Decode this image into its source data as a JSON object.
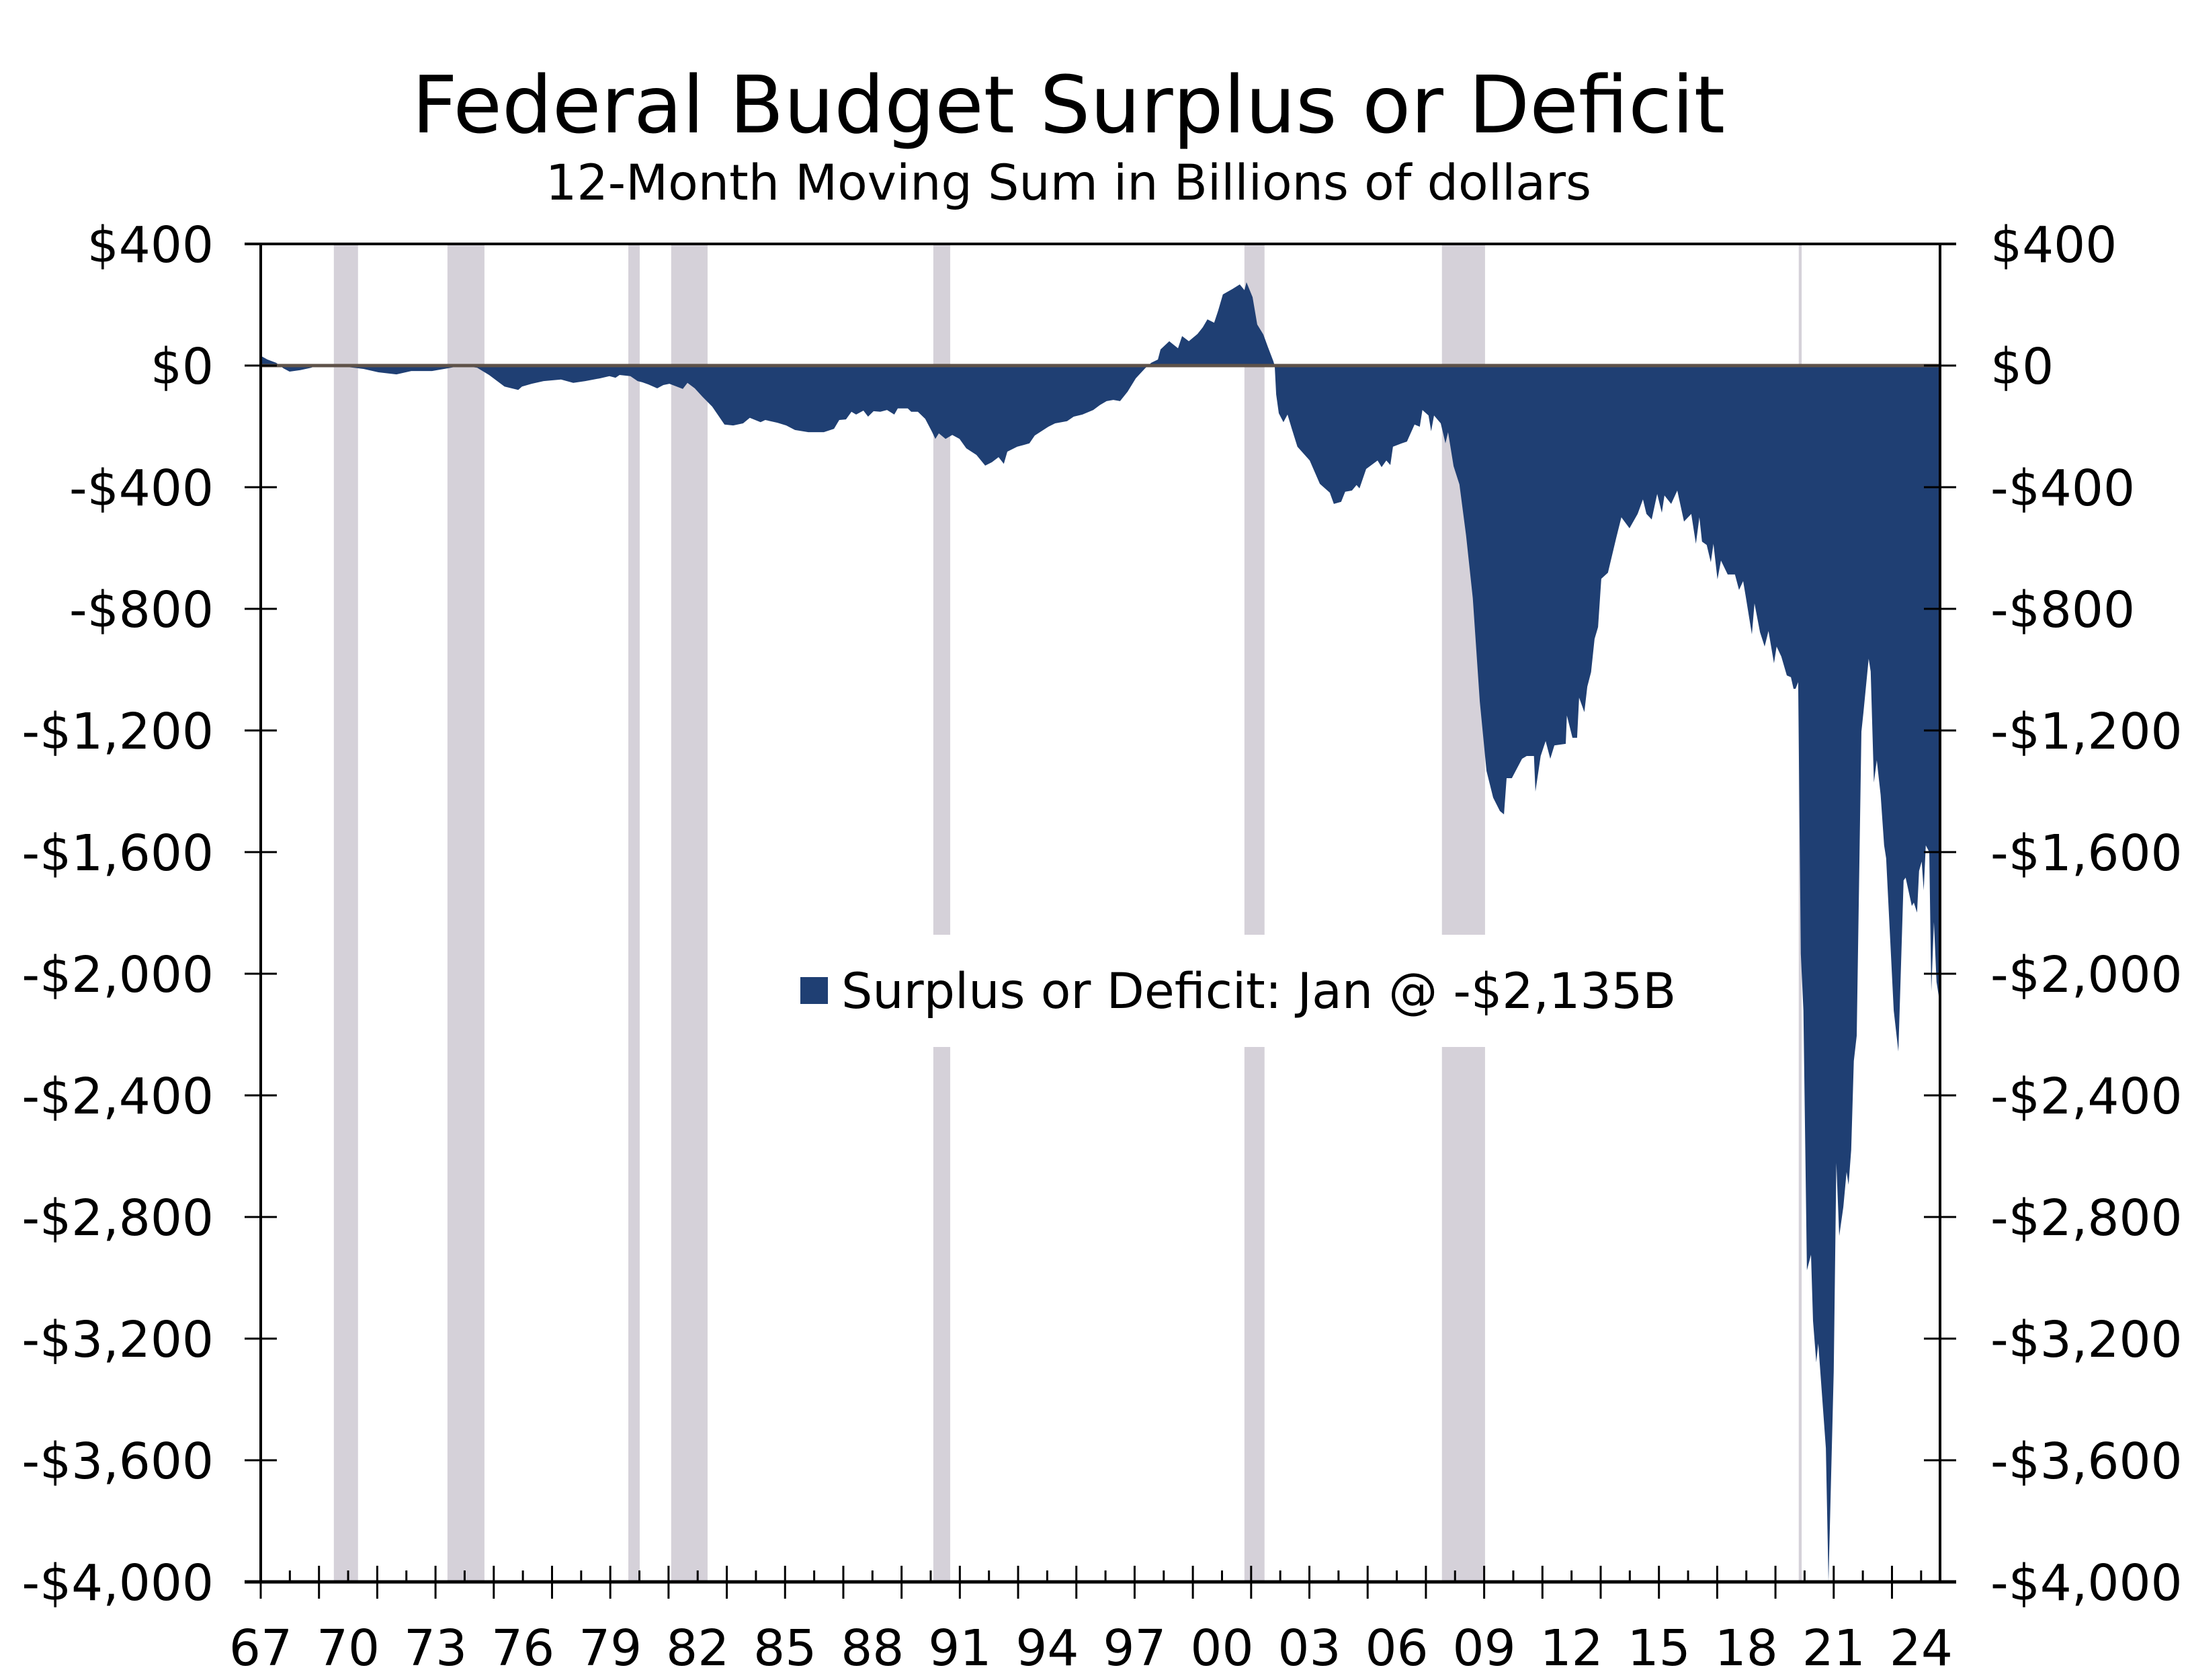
{
  "chart_data": {
    "type": "area",
    "title": "Federal Budget Surplus or Deficit",
    "subtitle": "12-Month Moving Sum in Billions of dollars",
    "xlabel": "",
    "ylabel": "",
    "xlim": [
      1967,
      2024.65
    ],
    "ylim": [
      -4000,
      400
    ],
    "grid": false,
    "colors": {
      "series": "#1F3F73",
      "zero_line": "#5E5249",
      "recession": "#D5D1D9",
      "axis": "#000000"
    },
    "y_ticks": [
      {
        "value": 400,
        "label": "$400"
      },
      {
        "value": 0,
        "label": "$0"
      },
      {
        "value": -400,
        "label": "-$400"
      },
      {
        "value": -800,
        "label": "-$800"
      },
      {
        "value": -1200,
        "label": "-$1,200"
      },
      {
        "value": -1600,
        "label": "-$1,600"
      },
      {
        "value": -2000,
        "label": "-$2,000"
      },
      {
        "value": -2400,
        "label": "-$2,400"
      },
      {
        "value": -2800,
        "label": "-$2,800"
      },
      {
        "value": -3200,
        "label": "-$3,200"
      },
      {
        "value": -3600,
        "label": "-$3,600"
      },
      {
        "value": -4000,
        "label": "-$4,000"
      }
    ],
    "x_ticks": [
      {
        "value": 1967,
        "label": "67"
      },
      {
        "value": 1970,
        "label": "70"
      },
      {
        "value": 1973,
        "label": "73"
      },
      {
        "value": 1976,
        "label": "76"
      },
      {
        "value": 1979,
        "label": "79"
      },
      {
        "value": 1982,
        "label": "82"
      },
      {
        "value": 1985,
        "label": "85"
      },
      {
        "value": 1988,
        "label": "88"
      },
      {
        "value": 1991,
        "label": "91"
      },
      {
        "value": 1994,
        "label": "94"
      },
      {
        "value": 1997,
        "label": "97"
      },
      {
        "value": 2000,
        "label": "00"
      },
      {
        "value": 2003,
        "label": "03"
      },
      {
        "value": 2006,
        "label": "06"
      },
      {
        "value": 2009,
        "label": "09"
      },
      {
        "value": 2012,
        "label": "12"
      },
      {
        "value": 2015,
        "label": "15"
      },
      {
        "value": 2018,
        "label": "18"
      },
      {
        "value": 2021,
        "label": "21"
      },
      {
        "value": 2024,
        "label": "24"
      }
    ],
    "recessions": [
      [
        1969.51,
        1970.34
      ],
      [
        1973.41,
        1974.68
      ],
      [
        1979.62,
        1980.01
      ],
      [
        1981.09,
        1982.34
      ],
      [
        1990.09,
        1990.67
      ],
      [
        2000.77,
        2001.46
      ],
      [
        2007.55,
        2009.03
      ],
      [
        2019.8,
        2019.9
      ]
    ],
    "legend": {
      "position": "center",
      "label": "Surplus or Deficit: Jan @ -$2,135B"
    },
    "series": [
      {
        "name": "Surplus or Deficit",
        "x": [
          1967.02,
          1967.23,
          1967.53,
          1967.78,
          1967.99,
          1968.36,
          1968.73,
          1968.87,
          1969.91,
          1970.53,
          1971.04,
          1971.66,
          1972.17,
          1972.88,
          1973.41,
          1973.92,
          1974.43,
          1974.84,
          1975.37,
          1975.84,
          1975.97,
          1976.3,
          1976.71,
          1977.31,
          1977.73,
          1978.14,
          1978.65,
          1978.97,
          1979.18,
          1979.32,
          1979.69,
          1979.94,
          1980.1,
          1980.31,
          1980.61,
          1980.82,
          1981.03,
          1981.49,
          1981.65,
          1981.9,
          1982.16,
          1982.5,
          1982.92,
          1983.22,
          1983.56,
          1983.79,
          1984.16,
          1984.32,
          1984.74,
          1985.04,
          1985.34,
          1985.8,
          1986.33,
          1986.68,
          1986.86,
          1987.09,
          1987.28,
          1987.44,
          1987.69,
          1987.85,
          1988.04,
          1988.27,
          1988.5,
          1988.75,
          1988.87,
          1989.21,
          1989.33,
          1989.56,
          1989.81,
          1990.05,
          1990.16,
          1990.28,
          1990.51,
          1990.74,
          1990.99,
          1991.22,
          1991.57,
          1991.87,
          1992.1,
          1992.33,
          1992.51,
          1992.63,
          1992.97,
          1993.39,
          1993.57,
          1994.04,
          1994.27,
          1994.68,
          1994.91,
          1995.21,
          1995.58,
          1995.81,
          1996.04,
          1996.27,
          1996.5,
          1996.76,
          1997.04,
          1997.36,
          1997.57,
          1997.8,
          1997.89,
          1998.19,
          1998.49,
          1998.63,
          1998.86,
          1999.16,
          1999.34,
          1999.5,
          1999.73,
          1999.87,
          2000.03,
          2000.36,
          2000.61,
          2000.77,
          2000.84,
          2001.05,
          2001.21,
          2001.42,
          2001.58,
          2001.76,
          2001.81,
          2001.86,
          2001.95,
          2002.11,
          2002.25,
          2002.39,
          2002.59,
          2003.01,
          2003.36,
          2003.7,
          2003.84,
          2004.09,
          2004.23,
          2004.46,
          2004.62,
          2004.72,
          2004.95,
          2005.34,
          2005.48,
          2005.64,
          2005.78,
          2005.87,
          2006.17,
          2006.35,
          2006.61,
          2006.79,
          2006.88,
          2007.09,
          2007.18,
          2007.28,
          2007.51,
          2007.67,
          2007.76,
          2007.95,
          2008.15,
          2008.38,
          2008.61,
          2008.85,
          2009.08,
          2009.31,
          2009.54,
          2009.68,
          2009.77,
          2009.95,
          2010.3,
          2010.46,
          2010.71,
          2010.76,
          2010.94,
          2011.11,
          2011.27,
          2011.41,
          2011.8,
          2011.84,
          2012.03,
          2012.19,
          2012.26,
          2012.44,
          2012.54,
          2012.67,
          2012.79,
          2012.91,
          2013.02,
          2013.25,
          2013.53,
          2013.71,
          2013.99,
          2014.27,
          2014.45,
          2014.57,
          2014.75,
          2014.94,
          2015.1,
          2015.19,
          2015.42,
          2015.63,
          2015.86,
          2016.11,
          2016.27,
          2016.39,
          2016.48,
          2016.64,
          2016.78,
          2016.87,
          2017.01,
          2017.13,
          2017.36,
          2017.61,
          2017.75,
          2017.89,
          2017.98,
          2018.19,
          2018.28,
          2018.47,
          2018.63,
          2018.76,
          2018.95,
          2019.04,
          2019.2,
          2019.39,
          2019.53,
          2019.62,
          2019.69,
          2019.78,
          2019.87,
          2019.96,
          2020.08,
          2020.22,
          2020.29,
          2020.4,
          2020.47,
          2020.73,
          2020.82,
          2021.0,
          2021.09,
          2021.19,
          2021.33,
          2021.44,
          2021.51,
          2021.6,
          2021.69,
          2021.79,
          2021.95,
          2022.02,
          2022.2,
          2022.27,
          2022.38,
          2022.48,
          2022.61,
          2022.73,
          2022.8,
          2023.06,
          2023.22,
          2023.4,
          2023.47,
          2023.68,
          2023.75,
          2023.86,
          2023.93,
          2024.02,
          2024.09,
          2024.16,
          2024.28,
          2024.35,
          2024.44,
          2024.53,
          2024.6,
          2024.65
        ],
        "y": [
          31,
          20,
          9,
          -9,
          -20,
          -15,
          -7,
          -2,
          -4,
          -11,
          -22,
          -29,
          -18,
          -18,
          -9,
          0,
          -7,
          -31,
          -69,
          -80,
          -69,
          -60,
          -51,
          -46,
          -57,
          -51,
          -42,
          -35,
          -40,
          -31,
          -35,
          -51,
          -55,
          -62,
          -75,
          -64,
          -60,
          -77,
          -57,
          -75,
          -102,
          -135,
          -194,
          -197,
          -190,
          -172,
          -186,
          -179,
          -188,
          -197,
          -212,
          -219,
          -219,
          -208,
          -179,
          -177,
          -152,
          -161,
          -148,
          -168,
          -150,
          -152,
          -146,
          -161,
          -141,
          -141,
          -152,
          -152,
          -175,
          -219,
          -241,
          -223,
          -241,
          -228,
          -241,
          -272,
          -294,
          -329,
          -318,
          -301,
          -323,
          -283,
          -267,
          -256,
          -230,
          -201,
          -190,
          -183,
          -168,
          -161,
          -146,
          -130,
          -117,
          -113,
          -117,
          -86,
          -42,
          -9,
          9,
          20,
          53,
          80,
          57,
          97,
          80,
          104,
          126,
          152,
          141,
          181,
          234,
          252,
          267,
          248,
          274,
          225,
          135,
          102,
          60,
          15,
          0,
          -95,
          -157,
          -186,
          -161,
          -206,
          -267,
          -312,
          -389,
          -418,
          -455,
          -448,
          -415,
          -411,
          -393,
          -404,
          -340,
          -312,
          -334,
          -312,
          -327,
          -267,
          -256,
          -250,
          -194,
          -201,
          -146,
          -164,
          -216,
          -164,
          -190,
          -256,
          -219,
          -331,
          -391,
          -559,
          -765,
          -1105,
          -1333,
          -1421,
          -1465,
          -1476,
          -1357,
          -1357,
          -1293,
          -1284,
          -1284,
          -1401,
          -1284,
          -1235,
          -1293,
          -1249,
          -1244,
          -1151,
          -1224,
          -1224,
          -1092,
          -1140,
          -1056,
          -1008,
          -899,
          -860,
          -701,
          -681,
          -568,
          -499,
          -535,
          -488,
          -440,
          -488,
          -506,
          -422,
          -484,
          -427,
          -455,
          -411,
          -513,
          -488,
          -586,
          -499,
          -579,
          -590,
          -647,
          -586,
          -703,
          -641,
          -687,
          -687,
          -738,
          -709,
          -760,
          -884,
          -782,
          -877,
          -924,
          -873,
          -979,
          -924,
          -957,
          -1019,
          -1025,
          -1063,
          -1063,
          -1041,
          -1934,
          -2121,
          -2975,
          -2924,
          -3142,
          -3278,
          -3216,
          -3560,
          -4000,
          -3309,
          -2622,
          -2862,
          -2767,
          -2652,
          -2694,
          -2579,
          -2287,
          -2204,
          -1204,
          -1141,
          -964,
          -1006,
          -1371,
          -1298,
          -1412,
          -1578,
          -1620,
          -2121,
          -2256,
          -1693,
          -1684,
          -1777,
          -1766,
          -1799,
          -1662,
          -1631,
          -1726,
          -1578,
          -1600,
          -2058,
          -1830,
          -2027,
          -2069,
          -2135
        ]
      }
    ]
  }
}
